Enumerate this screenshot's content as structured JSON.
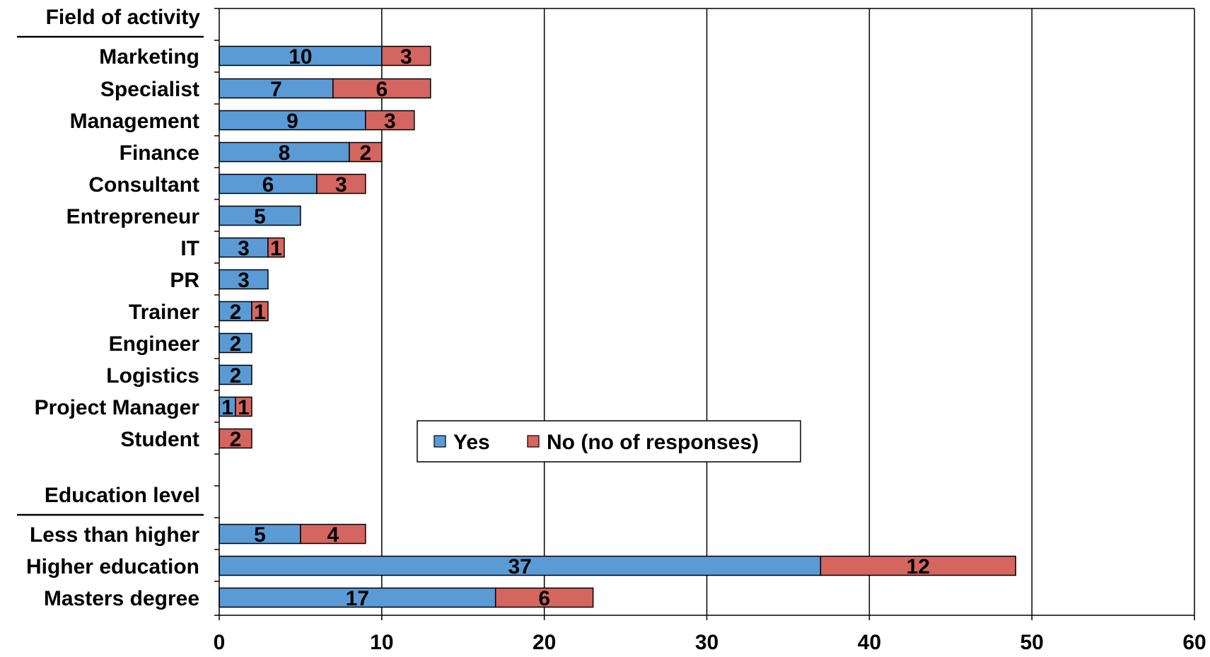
{
  "chart_data": {
    "type": "bar",
    "orientation": "horizontal",
    "stacked": true,
    "sections": [
      {
        "header": "Field of activity",
        "categories": [
          "Marketing",
          "Specialist",
          "Management",
          "Finance",
          "Consultant",
          "Entrepreneur",
          "IT",
          "PR",
          "Trainer",
          "Engineer",
          "Logistics",
          "Project Manager",
          "Student"
        ]
      },
      {
        "header": "Education level",
        "categories": [
          "Less than higher",
          "Higher education",
          "Masters degree"
        ]
      }
    ],
    "series": [
      {
        "name": "Yes",
        "color": "#5B9BD5",
        "values": [
          10,
          7,
          9,
          8,
          6,
          5,
          3,
          3,
          2,
          2,
          2,
          1,
          0,
          5,
          37,
          17
        ],
        "labels": [
          "10",
          "7",
          "9",
          "8",
          "6",
          "5",
          "3",
          "3",
          "2",
          "2",
          "2",
          "1",
          "",
          "5",
          "37",
          "17"
        ]
      },
      {
        "name": "No  (no of responses)",
        "color": "#D4665F",
        "values": [
          3,
          6,
          3,
          2,
          3,
          0,
          1,
          0,
          1,
          0,
          0,
          1,
          2,
          4,
          12,
          6
        ],
        "labels": [
          "3",
          "6",
          "3",
          "2",
          "3",
          "",
          "1",
          "",
          "1",
          "",
          "",
          "1",
          "2",
          "4",
          "12",
          "6"
        ]
      }
    ],
    "xlim": [
      0,
      60
    ],
    "xticks": [
      "0",
      "10",
      "20",
      "30",
      "40",
      "50",
      "60"
    ],
    "grid": "vertical",
    "legend_position": "center"
  }
}
